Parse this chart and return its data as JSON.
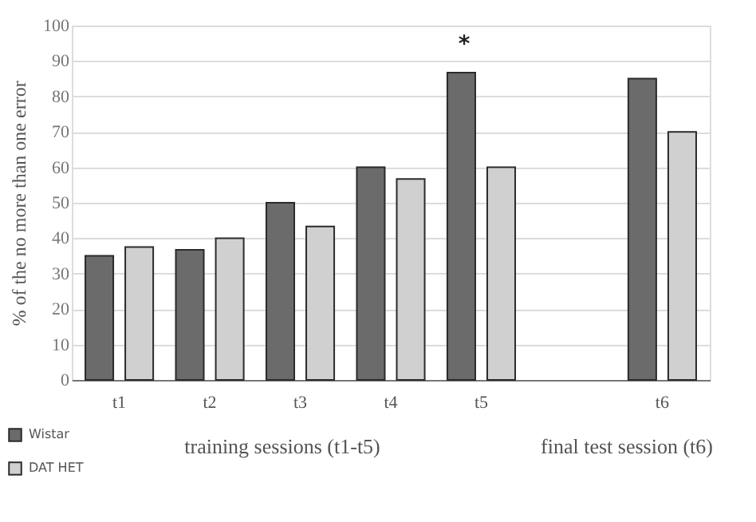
{
  "chart_data": {
    "type": "bar",
    "ylabel": "% of the no more than one error",
    "categories": [
      "t1",
      "t2",
      "t3",
      "t4",
      "t5",
      null,
      "t6"
    ],
    "series": [
      {
        "name": "Wistar",
        "color": "#6b6b6b",
        "values": [
          35,
          36.7,
          50,
          60,
          86.7,
          null,
          85
        ]
      },
      {
        "name": "DAT HET",
        "color": "#d0d0d0",
        "values": [
          37.5,
          40,
          43.3,
          56.7,
          60,
          null,
          70
        ]
      }
    ],
    "ylim": [
      0,
      100
    ],
    "yticks": [
      0,
      10,
      20,
      30,
      40,
      50,
      60,
      70,
      80,
      90,
      100
    ],
    "grid": "y",
    "legend": "bottom left",
    "annotations": [
      "*",
      "training sessions (t1-t5)",
      "final test session (t6)"
    ]
  }
}
